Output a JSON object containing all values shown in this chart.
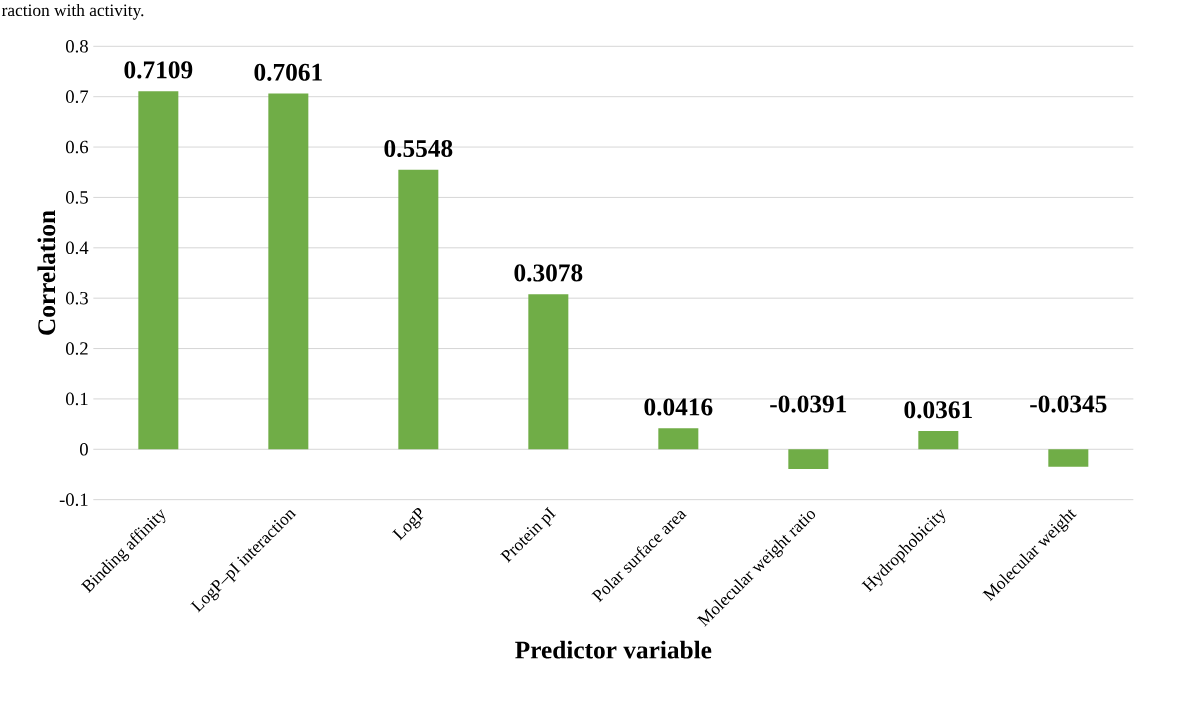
{
  "chart_data": {
    "type": "bar",
    "xlabel": "Predictor variable",
    "ylabel": "Correlation",
    "annotations": [
      "raction with activity."
    ],
    "categories": [
      "Binding affinity",
      "LogP–pI interaction",
      "LogP",
      "Protein pI",
      "Polar surface area",
      "Molecular weight ratio",
      "Hydrophobicity",
      "Molecular weight"
    ],
    "values": [
      0.7109,
      0.7061,
      0.5548,
      0.3078,
      0.0416,
      -0.0391,
      0.0361,
      -0.0345
    ],
    "color": "#70ad47",
    "data_labels": true,
    "grid": "y",
    "ylim": [
      -0.1,
      0.8
    ],
    "yticks": [
      -0.1,
      0,
      0.1,
      0.2,
      0.3,
      0.4,
      0.5,
      0.6,
      0.7,
      0.8
    ]
  }
}
